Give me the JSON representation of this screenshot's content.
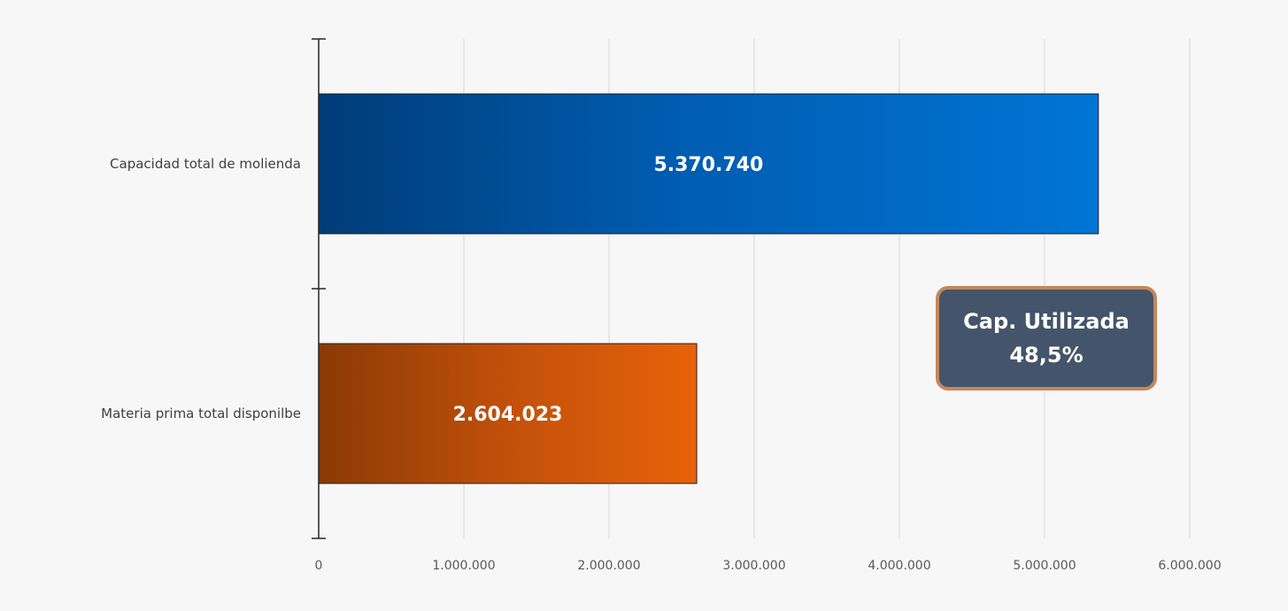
{
  "chart_data": {
    "type": "bar",
    "orientation": "horizontal",
    "categories": [
      "Capacidad total de molienda",
      "Materia prima total disponilbe"
    ],
    "values": [
      5370740,
      2604023
    ],
    "data_labels": [
      "5.370.740",
      "2.604.023"
    ],
    "colors": [
      "#0070d0",
      "#e35e0a"
    ],
    "xlim": [
      0,
      6000000
    ],
    "x_ticks": [
      0,
      1000000,
      2000000,
      3000000,
      4000000,
      5000000,
      6000000
    ],
    "x_tick_labels": [
      "0",
      "1.000.000",
      "2.000.000",
      "3.000.000",
      "4.000.000",
      "5.000.000",
      "6.000.000"
    ],
    "grid": true,
    "title": "",
    "xlabel": "",
    "ylabel": ""
  },
  "callout": {
    "line1": "Cap. Utilizada",
    "line2": "48,5%"
  }
}
